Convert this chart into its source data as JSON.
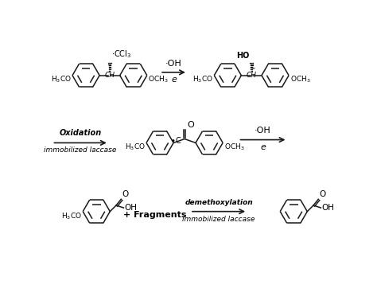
{
  "bg_color": "#ffffff",
  "line_color": "#1a1a1a",
  "text_color": "#000000",
  "row1_arrow_label_top": "·OH",
  "row1_arrow_label_bot": "e",
  "row2_arrow1_label_top": "Oxidation",
  "row2_arrow1_label_bot": "immobilized laccase",
  "row2_arrow2_label_top": "·OH",
  "row2_arrow2_label_bot": "e",
  "row3_plus": "+ Fragments",
  "row3_arrow_label_top": "demethoxylation",
  "row3_arrow_label_bot": "immobilized laccase",
  "benzene_r": 22,
  "lw": 1.1
}
